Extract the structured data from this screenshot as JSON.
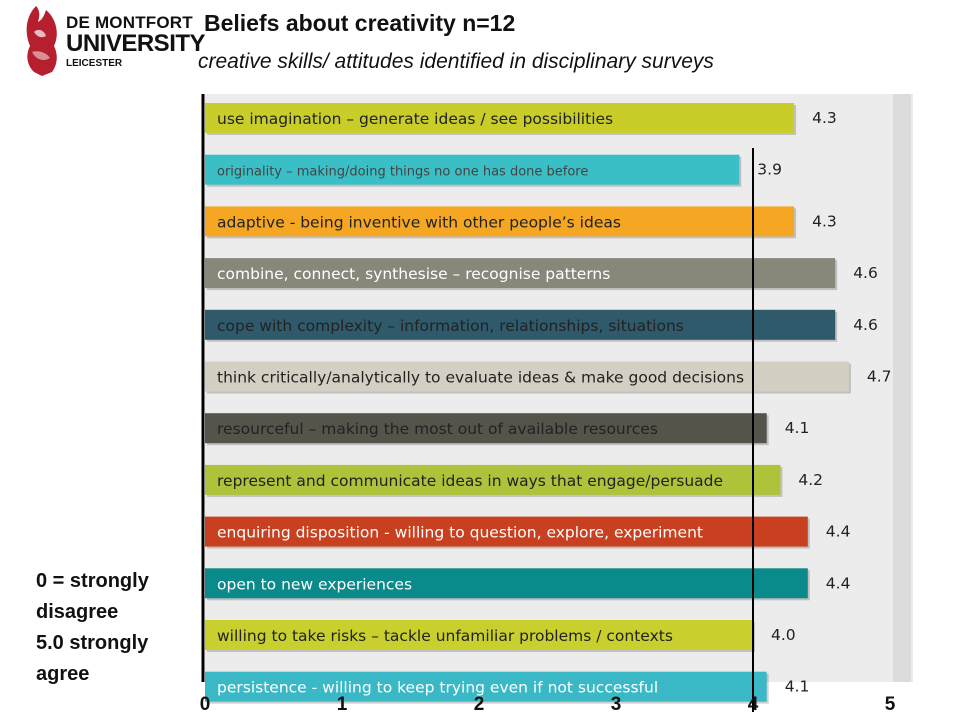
{
  "logo": {
    "line1": "DE MONTFORT",
    "line2": "UNIVERSITY",
    "line3": "LEICESTER"
  },
  "header": {
    "title": "Beliefs about creativity  n=12",
    "subtitle": "creative skills/ attitudes identified in disciplinary surveys"
  },
  "legend": {
    "line1": "0 = strongly",
    "line2": "disagree",
    "line3": "5.0 strongly",
    "line4": "agree"
  },
  "chart_data": {
    "type": "bar",
    "orientation": "horizontal",
    "xlim": [
      0,
      5
    ],
    "x_ticks": [
      "0",
      "1",
      "2",
      "3",
      "4",
      "5"
    ],
    "reference_line": 4,
    "grid": false,
    "categories": [
      "use imagination – generate ideas / see possibilities",
      "originality – making/doing things no one has done before",
      "adaptive - being inventive with other people’s ideas",
      "combine, connect, synthesise – recognise patterns",
      "cope with  complexity – information, relationships, situations",
      "think critically/analytically to evaluate ideas & make good decisions",
      "resourceful – making the most out of available resources",
      "represent and communicate ideas in ways that engage/persuade",
      "enquiring disposition -  willing to question, explore, experiment",
      "open to new experiences",
      "willing to take risks – tackle unfamiliar problems / contexts",
      "persistence  - willing to keep trying even if not successful"
    ],
    "values": [
      4.3,
      3.9,
      4.3,
      4.6,
      4.6,
      4.7,
      4.1,
      4.2,
      4.4,
      4.4,
      4.0,
      4.1
    ],
    "value_labels": [
      "4.3",
      "3.9",
      "4.3",
      "4.6",
      "4.6",
      "4.7",
      "4.1",
      "4.2",
      "4.4",
      "4.4",
      "4.0",
      "4.1"
    ],
    "colors": [
      "#c8cd2a",
      "#3abfc6",
      "#f5a623",
      "#87877a",
      "#2f5a6b",
      "#d3d0c3",
      "#56534a",
      "#aec33a",
      "#c8401f",
      "#0a8a8a",
      "#c9d02e",
      "#3ab8c6"
    ],
    "label_colors": [
      "#222222",
      "#444444",
      "#222222",
      "#ffffff",
      "#222222",
      "#222222",
      "#222222",
      "#222222",
      "#ffffff",
      "#ffffff",
      "#222222",
      "#ffffff"
    ]
  }
}
